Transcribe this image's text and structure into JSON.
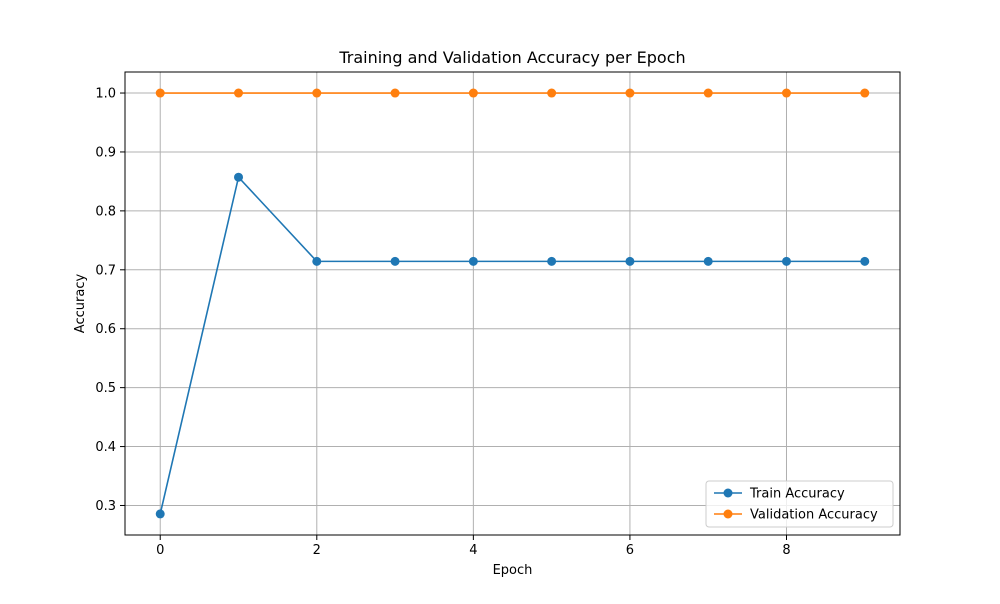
{
  "chart_data": {
    "type": "line",
    "title": "Training and Validation Accuracy per Epoch",
    "xlabel": "Epoch",
    "ylabel": "Accuracy",
    "x": [
      0,
      1,
      2,
      3,
      4,
      5,
      6,
      7,
      8,
      9
    ],
    "xlim": [
      -0.45,
      9.45
    ],
    "ylim": [
      0.2499,
      1.0357
    ],
    "xticks": [
      0,
      2,
      4,
      6,
      8
    ],
    "xtick_labels": [
      "0",
      "2",
      "4",
      "6",
      "8"
    ],
    "yticks": [
      0.3,
      0.4,
      0.5,
      0.6,
      0.7,
      0.8,
      0.9,
      1.0
    ],
    "ytick_labels": [
      "0.3",
      "0.4",
      "0.5",
      "0.6",
      "0.7",
      "0.8",
      "0.9",
      "1.0"
    ],
    "grid": true,
    "legend_position": "lower-right",
    "series": [
      {
        "name": "Train Accuracy",
        "color": "#1f77b4",
        "marker": "circle",
        "values": [
          0.2857,
          0.8571,
          0.7143,
          0.7143,
          0.7143,
          0.7143,
          0.7143,
          0.7143,
          0.7143,
          0.7143
        ]
      },
      {
        "name": "Validation Accuracy",
        "color": "#ff7f0e",
        "marker": "circle",
        "values": [
          1.0,
          1.0,
          1.0,
          1.0,
          1.0,
          1.0,
          1.0,
          1.0,
          1.0,
          1.0
        ]
      }
    ]
  }
}
